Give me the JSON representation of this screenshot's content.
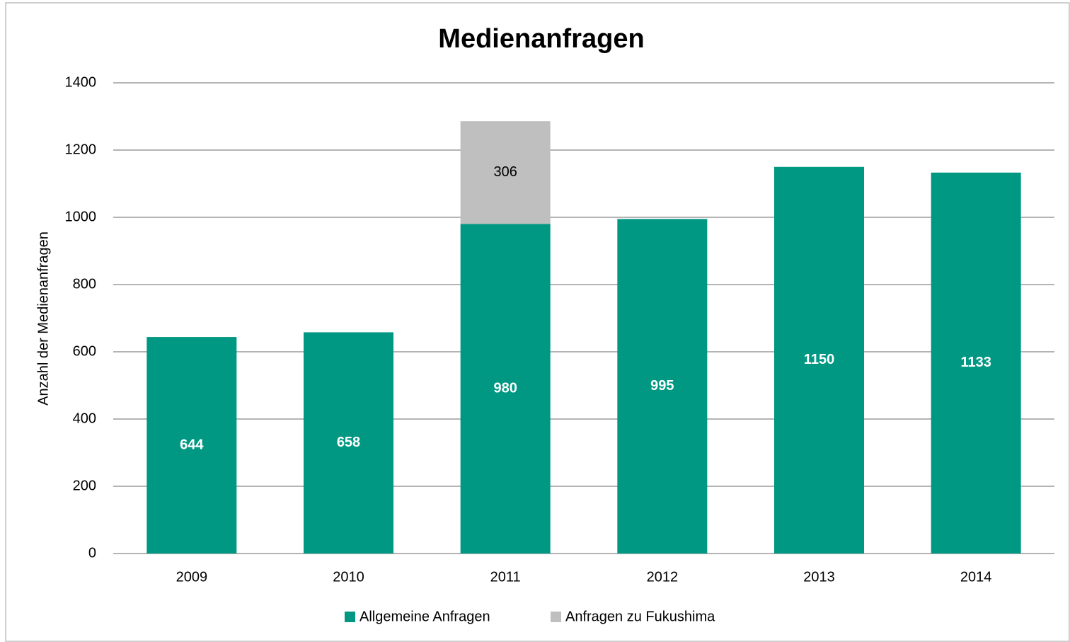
{
  "chart_data": {
    "type": "stacked_bar",
    "title": "Medienanfragen",
    "y_label": "Anzahl der Medienanfragen",
    "categories": [
      "2009",
      "2010",
      "2011",
      "2012",
      "2013",
      "2014"
    ],
    "series": [
      {
        "name": "Allgemeine Anfragen",
        "color": "#009882",
        "values": [
          644,
          658,
          980,
          995,
          1150,
          1133
        ]
      },
      {
        "name": "Anfragen zu Fukushima",
        "color": "#bfbfbf",
        "values": [
          null,
          null,
          306,
          null,
          null,
          null
        ]
      }
    ],
    "ylim": [
      0,
      1400
    ],
    "yticks": [
      0,
      200,
      400,
      600,
      800,
      1000,
      1200,
      1400
    ],
    "grid": true,
    "legend": "bottom"
  }
}
